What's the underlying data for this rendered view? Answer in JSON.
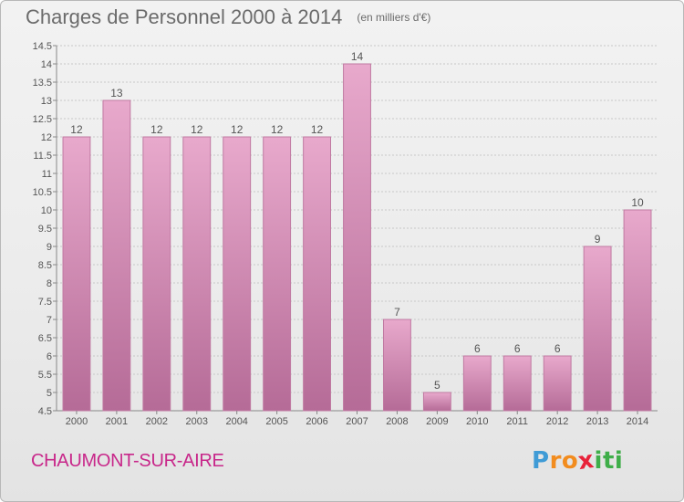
{
  "title": "Charges de Personnel 2000 à 2014",
  "unit": "(en milliers d'€)",
  "place": "CHAUMONT-SUR-AIRE",
  "logo": {
    "letters": [
      {
        "ch": "P",
        "color": "#3f9bd6"
      },
      {
        "ch": "r",
        "color": "#f28c1e"
      },
      {
        "ch": "o",
        "color": "#f28c1e"
      },
      {
        "ch": "x",
        "color": "#e8223a"
      },
      {
        "ch": "i",
        "color": "#3fae49"
      },
      {
        "ch": "t",
        "color": "#3fae49"
      },
      {
        "ch": "i",
        "color": "#3fae49"
      }
    ]
  },
  "chart_data": {
    "type": "bar",
    "categories": [
      "2000",
      "2001",
      "2002",
      "2003",
      "2004",
      "2005",
      "2006",
      "2007",
      "2008",
      "2009",
      "2010",
      "2011",
      "2012",
      "2013",
      "2014"
    ],
    "values": [
      12,
      13,
      12,
      12,
      12,
      12,
      12,
      14,
      7,
      5,
      6,
      6,
      6,
      9,
      10
    ],
    "data_labels": [
      "12",
      "13",
      "12",
      "12",
      "12",
      "12",
      "12",
      "14",
      "7",
      "5",
      "6",
      "6",
      "6",
      "9",
      "10"
    ],
    "y_ticks": [
      "4.5",
      "5",
      "5.5",
      "6",
      "6.5",
      "7",
      "7.5",
      "8",
      "8.5",
      "9",
      "9.5",
      "10",
      "10.5",
      "11",
      "11.5",
      "12",
      "12.5",
      "13",
      "13.5",
      "14",
      "14.5"
    ],
    "ylim": [
      4.5,
      14.5
    ],
    "grid": true,
    "colors": {
      "bar_top": "#e8a9cc",
      "bar_bottom": "#b56b97",
      "bar_edge": "#c07aa2",
      "grid": "#c8c8c8"
    }
  }
}
